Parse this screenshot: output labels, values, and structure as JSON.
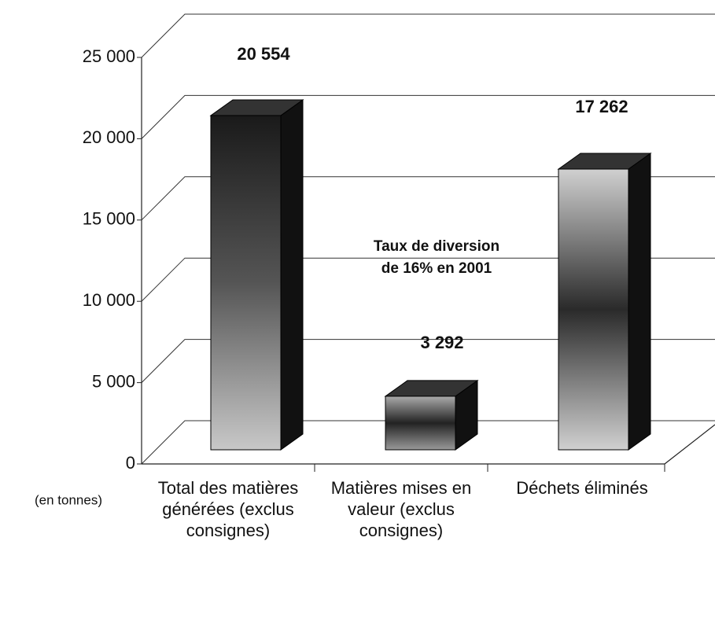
{
  "chart_data": {
    "type": "bar3d",
    "categories": [
      "Total des matières générées (exclus consignes)",
      "Matières mises en valeur (exclus consignes)",
      "Déchets éliminés"
    ],
    "values": [
      20554,
      3292,
      17262
    ],
    "value_labels": [
      "20 554",
      "3 292",
      "17 262"
    ],
    "color": "#808080",
    "ylim": [
      0,
      25000
    ],
    "yticks": [
      0,
      {
        "value": 5000,
        "label": "5 000"
      },
      {
        "value": 10000,
        "label": "10 000"
      },
      {
        "value": 15000,
        "label": "15 000"
      },
      {
        "value": 20000,
        "label": "20 000"
      },
      {
        "value": 25000,
        "label": "25 000"
      }
    ],
    "y_label": "(en tonnes)",
    "annotation": "Taux de diversion de 16% en 2001",
    "grid": true
  }
}
